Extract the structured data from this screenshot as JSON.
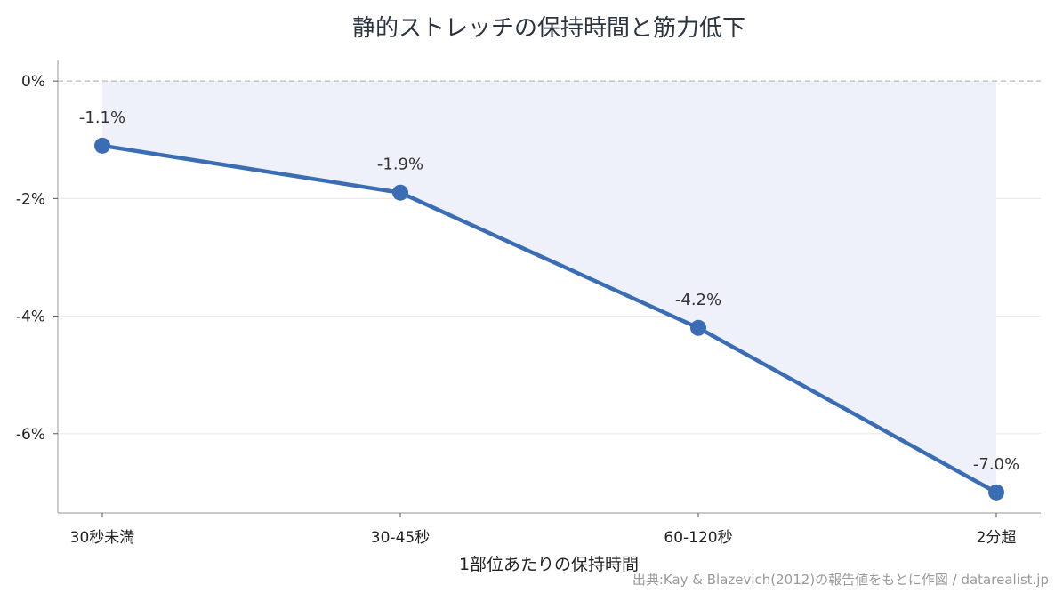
{
  "chart_data": {
    "type": "line",
    "title": "静的ストレッチの保持時間と筋力低下",
    "xlabel": "1部位あたりの保持時間",
    "ylabel": "",
    "categories": [
      "30秒未満",
      "30-45秒",
      "60-120秒",
      "2分超"
    ],
    "series": [
      {
        "values": [
          -1.1,
          -1.9,
          -4.2,
          -7.0
        ],
        "data_labels": [
          "-1.1%",
          "-1.9%",
          "-4.2%",
          "-7.0%"
        ]
      }
    ],
    "ylim": [
      -7.35,
      0.35
    ],
    "yticks": [
      0,
      -2,
      -4,
      -6
    ],
    "ytick_labels": [
      "0%",
      "-2%",
      "-4%",
      "-6%"
    ],
    "grid": true,
    "zero_line": "dashed",
    "fill_to_zero": true,
    "source": "出典:Kay & Blazevich(2012)の報告値をもとに作図 / datarealist.jp",
    "colors": {
      "line": "#3b6db4",
      "fill": "#eef1f9",
      "grid": "#ebebeb",
      "zero_line": "#c4c4c8",
      "axis": "#aaaaaa"
    }
  }
}
